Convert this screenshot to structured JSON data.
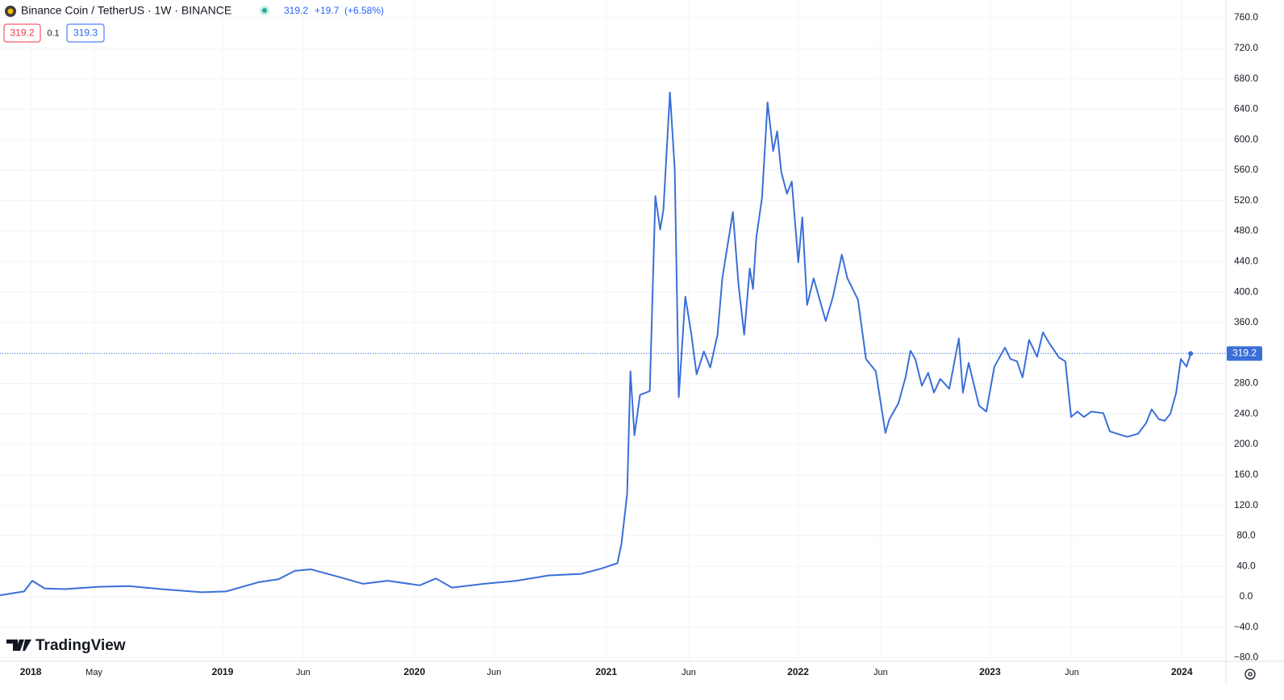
{
  "chart_data": {
    "type": "line",
    "title": "Binance Coin / TetherUS · 1W · BINANCE",
    "change": "+19.7",
    "change_percent": "(+6.58%)",
    "bid": "319.2",
    "spread": "0.1",
    "ask": "319.3",
    "watermark": "TradingView",
    "last_value": 319.2,
    "color": "#3a6fd8",
    "grid": true,
    "x": [
      2017.84,
      2017.966,
      2018.008,
      2018.072,
      2018.177,
      2018.345,
      2018.513,
      2018.681,
      2018.892,
      2019.018,
      2019.186,
      2019.292,
      2019.376,
      2019.46,
      2019.607,
      2019.733,
      2019.86,
      2020.028,
      2020.112,
      2020.196,
      2020.364,
      2020.533,
      2020.701,
      2020.869,
      2020.974,
      2021.058,
      2021.079,
      2021.109,
      2021.126,
      2021.147,
      2021.176,
      2021.227,
      2021.256,
      2021.281,
      2021.298,
      2021.332,
      2021.357,
      2021.378,
      2021.412,
      2021.441,
      2021.471,
      2021.509,
      2021.542,
      2021.58,
      2021.605,
      2021.66,
      2021.69,
      2021.719,
      2021.748,
      2021.765,
      2021.782,
      2021.812,
      2021.841,
      2021.87,
      2021.891,
      2021.912,
      2021.942,
      2021.967,
      2022.001,
      2022.022,
      2022.047,
      2022.081,
      2022.144,
      2022.182,
      2022.228,
      2022.257,
      2022.312,
      2022.354,
      2022.405,
      2022.455,
      2022.476,
      2022.523,
      2022.56,
      2022.586,
      2022.611,
      2022.645,
      2022.678,
      2022.708,
      2022.741,
      2022.788,
      2022.838,
      2022.859,
      2022.889,
      2022.943,
      2022.981,
      2023.023,
      2023.078,
      2023.107,
      2023.141,
      2023.17,
      2023.204,
      2023.246,
      2023.276,
      2023.309,
      2023.36,
      2023.393,
      2023.423,
      2023.456,
      2023.49,
      2023.528,
      2023.591,
      2023.625,
      2023.688,
      2023.717,
      2023.772,
      2023.814,
      2023.843,
      2023.881,
      2023.911,
      2023.94,
      2023.97,
      2023.995,
      2024.025,
      2024.046
    ],
    "values": [
      2,
      7,
      21,
      11,
      10,
      13,
      14,
      10,
      6,
      7,
      19,
      23,
      34,
      36,
      26,
      17,
      21,
      15,
      24,
      12,
      17,
      21,
      28,
      30,
      37,
      44,
      69,
      135,
      296,
      212,
      265,
      270,
      526,
      482,
      508,
      662,
      561,
      262,
      394,
      349,
      292,
      322,
      301,
      344,
      418,
      505,
      408,
      344,
      431,
      404,
      471,
      524,
      649,
      585,
      611,
      558,
      529,
      545,
      439,
      498,
      383,
      418,
      362,
      394,
      449,
      418,
      390,
      312,
      296,
      215,
      233,
      254,
      288,
      323,
      312,
      277,
      294,
      268,
      286,
      273,
      339,
      268,
      307,
      251,
      243,
      302,
      327,
      312,
      309,
      288,
      337,
      315,
      347,
      333,
      314,
      309,
      236,
      243,
      236,
      243,
      241,
      217,
      212,
      210,
      214,
      228,
      246,
      233,
      231,
      240,
      267,
      312,
      302,
      319.2
    ],
    "xlim": [
      2017.84,
      2024.23
    ],
    "xticks": [
      {
        "value": 2018,
        "label": "2018"
      },
      {
        "value": 2018.33,
        "label": "May"
      },
      {
        "value": 2019,
        "label": "2019"
      },
      {
        "value": 2019.42,
        "label": "Jun"
      },
      {
        "value": 2020,
        "label": "2020"
      },
      {
        "value": 2020.415,
        "label": "Jun"
      },
      {
        "value": 2021,
        "label": "2021"
      },
      {
        "value": 2021.43,
        "label": "Jun"
      },
      {
        "value": 2022,
        "label": "2022"
      },
      {
        "value": 2022.43,
        "label": "Jun"
      },
      {
        "value": 2023,
        "label": "2023"
      },
      {
        "value": 2023.427,
        "label": "Jun"
      },
      {
        "value": 2024,
        "label": "2024"
      }
    ],
    "ylim": [
      -84.7,
      783.3
    ],
    "yticks": [
      {
        "value": -80,
        "label": "−80.0"
      },
      {
        "value": -40,
        "label": "−40.0"
      },
      {
        "value": 0,
        "label": "0.0"
      },
      {
        "value": 40,
        "label": "40.0"
      },
      {
        "value": 80,
        "label": "80.0"
      },
      {
        "value": 120,
        "label": "120.0"
      },
      {
        "value": 160,
        "label": "160.0"
      },
      {
        "value": 200,
        "label": "200.0"
      },
      {
        "value": 240,
        "label": "240.0"
      },
      {
        "value": 280,
        "label": "280.0"
      },
      {
        "value": 320,
        "label": "320.0"
      },
      {
        "value": 360,
        "label": "360.0"
      },
      {
        "value": 400,
        "label": "400.0"
      },
      {
        "value": 440,
        "label": "440.0"
      },
      {
        "value": 480,
        "label": "480.0"
      },
      {
        "value": 520,
        "label": "520.0"
      },
      {
        "value": 560,
        "label": "560.0"
      },
      {
        "value": 600,
        "label": "600.0"
      },
      {
        "value": 640,
        "label": "640.0"
      },
      {
        "value": 680,
        "label": "680.0"
      },
      {
        "value": 720,
        "label": "720.0"
      },
      {
        "value": 760,
        "label": "760.0"
      }
    ]
  }
}
